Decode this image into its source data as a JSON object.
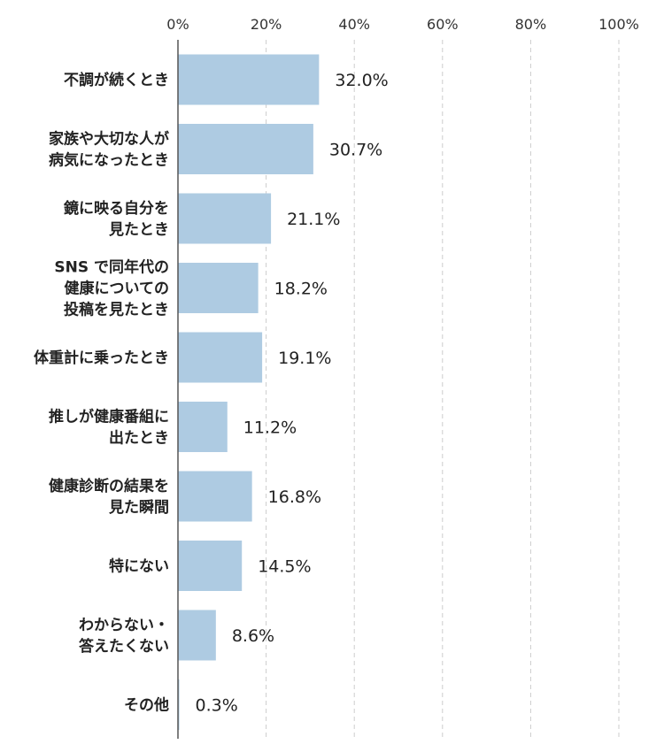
{
  "chart_data": {
    "type": "bar",
    "orientation": "horizontal",
    "title": "",
    "xlabel": "",
    "ylabel": "",
    "xlim": [
      0,
      100
    ],
    "grid": true,
    "x_ticks": [
      "0%",
      "20%",
      "40%",
      "60%",
      "80%",
      "100%"
    ],
    "x_tick_values": [
      0,
      20,
      40,
      60,
      80,
      100
    ],
    "categories": [
      [
        "不調が続くとき"
      ],
      [
        "家族や大切な人が",
        "病気になったとき"
      ],
      [
        "鏡に映る自分を",
        "見たとき"
      ],
      [
        "SNS で同年代の",
        "健康についての",
        "投稿を見たとき"
      ],
      [
        "体重計に乗ったとき"
      ],
      [
        "推しが健康番組に",
        "出たとき"
      ],
      [
        "健康診断の結果を",
        "見た瞬間"
      ],
      [
        "特にない"
      ],
      [
        "わからない・",
        "答えたくない"
      ],
      [
        "その他"
      ]
    ],
    "values": [
      32.0,
      30.7,
      21.1,
      18.2,
      19.1,
      11.2,
      16.8,
      14.5,
      8.6,
      0.3
    ],
    "value_labels": [
      "32.0%",
      "30.7%",
      "21.1%",
      "18.2%",
      "19.1%",
      "11.2%",
      "16.8%",
      "14.5%",
      "8.6%",
      "0.3%"
    ],
    "bar_color": "#aecbe2",
    "grid_color": "#cccccc",
    "axis_color": "#555555"
  }
}
